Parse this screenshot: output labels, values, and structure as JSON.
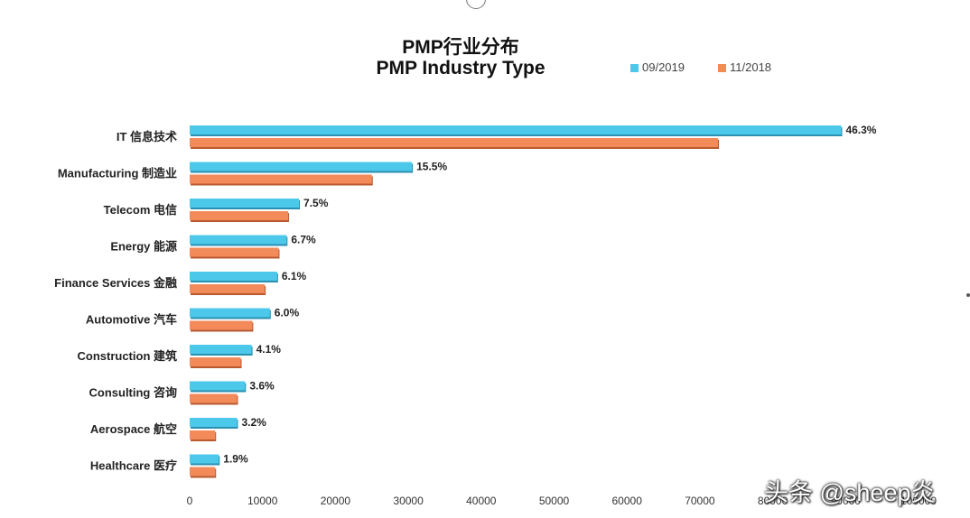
{
  "title": {
    "line1": "PMP行业分布",
    "line2": "PMP Industry Type"
  },
  "legend": [
    {
      "label": "09/2019",
      "color": "#4cc9ea"
    },
    {
      "label": "11/2018",
      "color": "#f28a5a"
    }
  ],
  "watermark": "头条 @sheep炎",
  "chart_data": {
    "type": "bar",
    "orientation": "horizontal",
    "categories": [
      "IT 信息技术",
      "Manufacturing 制造业",
      "Telecom 电信",
      "Energy 能源",
      "Finance Services 金融",
      "Automotive 汽车",
      "Construction 建筑",
      "Consulting 咨询",
      "Aerospace 航空",
      "Healthcare 医疗"
    ],
    "series": [
      {
        "name": "09/2019",
        "color": "#4cc9ea",
        "values": [
          89400,
          30500,
          15000,
          13300,
          12000,
          11000,
          8500,
          7600,
          6500,
          4000
        ],
        "labels": [
          "46.3%",
          "15.5%",
          "7.5%",
          "6.7%",
          "6.1%",
          "6.0%",
          "4.1%",
          "3.6%",
          "3.2%",
          "1.9%"
        ]
      },
      {
        "name": "11/2018",
        "color": "#f28a5a",
        "values": [
          72500,
          25000,
          13500,
          12200,
          10300,
          8600,
          7000,
          6500,
          3500,
          3500
        ]
      }
    ],
    "xlim": [
      0,
      100000
    ],
    "xticks": [
      "0",
      "10000",
      "20000",
      "30000",
      "40000",
      "50000",
      "60000",
      "70000",
      "80000",
      "90000",
      "100000"
    ],
    "grid": false,
    "legend_position": "top-right"
  }
}
